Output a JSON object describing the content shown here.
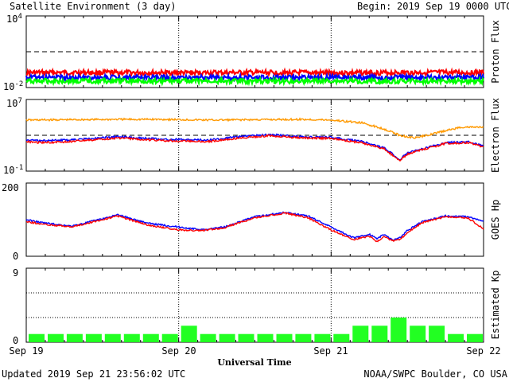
{
  "header": {
    "title": "Satellite Environment (3 day)",
    "begin_label": "Begin:",
    "begin_value": "2019 Sep 19 0000 UTC"
  },
  "footer": {
    "updated": "Updated 2019 Sep 21 23:56:02 UTC",
    "credit": "NOAA/SWPC Boulder, CO USA"
  },
  "x_axis": {
    "label": "Universal Time",
    "ticks": [
      "Sep 19",
      "Sep 20",
      "Sep 21",
      "Sep 22"
    ]
  },
  "colors": {
    "red": "#ff0000",
    "blue": "#0000ff",
    "green": "#00ff00",
    "orange": "#ff9900",
    "kp_bar": "#22ff22"
  },
  "chart_data": [
    {
      "type": "line",
      "panel": "proton",
      "ylabel": "Proton Flux",
      "y_scale": "log",
      "ylim": [
        0.01,
        10000
      ],
      "y_ticks": [
        {
          "base": "10",
          "exp": "4"
        },
        {
          "base": "10",
          "exp": "-2"
        }
      ],
      "threshold": 10,
      "x_unit": "days since Sep 19 0000 UTC",
      "series": [
        {
          "color": "#ff0000",
          "x": [
            0,
            0.5,
            1,
            1.5,
            2,
            2.5,
            3
          ],
          "y": [
            0.18,
            0.18,
            0.17,
            0.18,
            0.17,
            0.18,
            0.18
          ]
        },
        {
          "color": "#0000ff",
          "x": [
            0,
            0.5,
            1,
            1.5,
            2,
            2.5,
            3
          ],
          "y": [
            0.07,
            0.07,
            0.07,
            0.07,
            0.07,
            0.07,
            0.07
          ]
        },
        {
          "color": "#00ff00",
          "x": [
            0,
            0.5,
            1,
            1.5,
            2,
            2.5,
            3
          ],
          "y": [
            0.035,
            0.035,
            0.035,
            0.035,
            0.035,
            0.035,
            0.035
          ]
        }
      ]
    },
    {
      "type": "line",
      "panel": "electron",
      "ylabel": "Electron Flux",
      "y_scale": "log",
      "ylim": [
        0.1,
        10000000
      ],
      "y_ticks": [
        {
          "base": "10",
          "exp": "7"
        },
        {
          "base": "10",
          "exp": "-1"
        }
      ],
      "threshold": 1000,
      "series": [
        {
          "color": "#ff9900",
          "x": [
            0,
            0.3,
            0.6,
            0.9,
            1.2,
            1.5,
            1.8,
            2.0,
            2.2,
            2.35,
            2.45,
            2.55,
            2.7,
            2.85,
            3.0
          ],
          "y": [
            50000,
            55000,
            60000,
            60000,
            50000,
            55000,
            60000,
            50000,
            25000,
            5000,
            1000,
            500,
            2000,
            8000,
            8000
          ]
        },
        {
          "color": "#0000ff",
          "x": [
            0,
            0.1,
            0.3,
            0.6,
            0.9,
            1.2,
            1.4,
            1.6,
            1.8,
            2.0,
            2.2,
            2.35,
            2.45,
            2.5,
            2.6,
            2.75,
            2.9,
            3.0
          ],
          "y": [
            300,
            250,
            300,
            700,
            350,
            300,
            700,
            1200,
            700,
            600,
            200,
            40,
            2,
            10,
            30,
            150,
            200,
            60
          ]
        },
        {
          "color": "#ff0000",
          "x": [
            0,
            0.1,
            0.3,
            0.6,
            0.9,
            1.2,
            1.4,
            1.6,
            1.8,
            2.0,
            2.2,
            2.35,
            2.45,
            2.5,
            2.6,
            2.75,
            2.9,
            3.0
          ],
          "y": [
            200,
            150,
            200,
            500,
            250,
            200,
            500,
            900,
            500,
            450,
            150,
            30,
            1.5,
            8,
            25,
            120,
            150,
            50
          ]
        }
      ]
    },
    {
      "type": "line",
      "panel": "goes_hp",
      "ylabel": "GOES Hp",
      "y_scale": "linear",
      "ylim": [
        0,
        200
      ],
      "y_ticks": [
        "200",
        "0"
      ],
      "series": [
        {
          "color": "#0000ff",
          "x": [
            0,
            0.1,
            0.3,
            0.6,
            0.8,
            1.0,
            1.15,
            1.3,
            1.5,
            1.7,
            1.85,
            2.0,
            2.15,
            2.25,
            2.3,
            2.35,
            2.4,
            2.45,
            2.5,
            2.6,
            2.75,
            2.9,
            3.0
          ],
          "y": [
            100,
            92,
            82,
            113,
            90,
            80,
            72,
            80,
            108,
            120,
            110,
            80,
            50,
            60,
            48,
            60,
            45,
            50,
            70,
            95,
            110,
            108,
            95
          ]
        },
        {
          "color": "#ff0000",
          "x": [
            0,
            0.1,
            0.3,
            0.6,
            0.8,
            1.0,
            1.15,
            1.3,
            1.5,
            1.7,
            1.85,
            2.0,
            2.15,
            2.25,
            2.3,
            2.35,
            2.4,
            2.45,
            2.5,
            2.6,
            2.75,
            2.9,
            3.0
          ],
          "y": [
            95,
            88,
            80,
            110,
            85,
            72,
            70,
            78,
            105,
            118,
            105,
            72,
            45,
            55,
            40,
            55,
            42,
            45,
            65,
            92,
            108,
            104,
            75
          ]
        }
      ]
    },
    {
      "type": "bar",
      "panel": "kp",
      "ylabel": "Estimated Kp",
      "ylim": [
        0,
        9
      ],
      "y_ticks": [
        "9",
        "0"
      ],
      "gridlines": [
        3,
        6
      ],
      "x_unit": "3-hour intervals starting Sep 19 0000 UTC",
      "values": [
        1,
        1,
        1,
        1,
        1,
        1,
        1,
        1,
        2,
        1,
        1,
        1,
        1,
        1,
        1,
        1,
        1,
        2,
        2,
        3,
        2,
        2,
        1,
        1
      ]
    }
  ]
}
